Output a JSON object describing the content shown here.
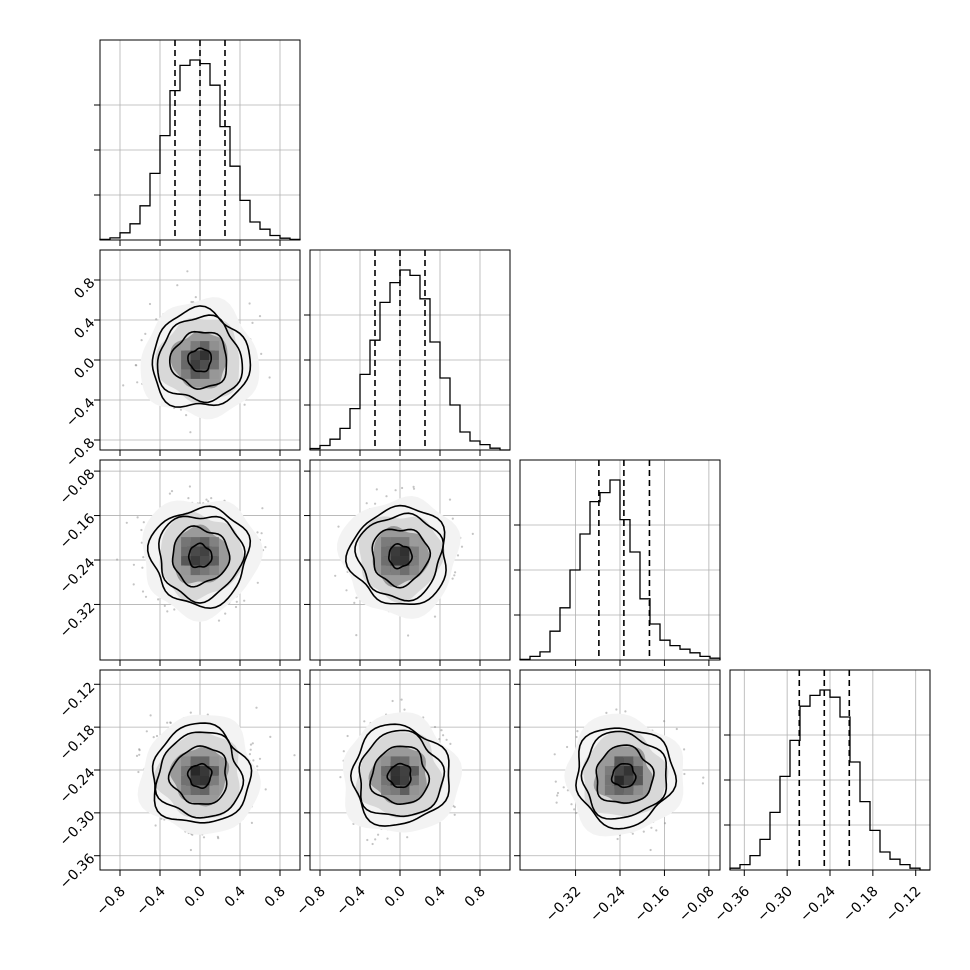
{
  "chart_data": {
    "type": "corner",
    "dimensions": 4,
    "grid": true,
    "params": [
      {
        "range": [
          -1.0,
          1.0
        ],
        "ticks": [
          -0.8,
          -0.4,
          0.0,
          0.4,
          0.8
        ],
        "tick_labels": [
          "−0.8",
          "−0.4",
          "0.0",
          "0.4",
          "0.8"
        ],
        "hist_bins": 20,
        "hist_heights": [
          0.003,
          0.012,
          0.04,
          0.09,
          0.19,
          0.37,
          0.58,
          0.83,
          0.97,
          1.0,
          0.98,
          0.86,
          0.63,
          0.41,
          0.22,
          0.1,
          0.06,
          0.025,
          0.01,
          0.003
        ],
        "quantiles": [
          -0.25,
          0.0,
          0.25
        ]
      },
      {
        "range": [
          -0.9,
          1.1
        ],
        "ticks": [
          -0.8,
          -0.4,
          0.0,
          0.4,
          0.8
        ],
        "tick_labels": [
          "−0.8",
          "−0.4",
          "0.0",
          "0.4",
          "0.8"
        ],
        "hist_bins": 20,
        "hist_heights": [
          0.008,
          0.025,
          0.06,
          0.12,
          0.23,
          0.42,
          0.61,
          0.82,
          0.93,
          1.0,
          0.97,
          0.84,
          0.6,
          0.4,
          0.25,
          0.1,
          0.05,
          0.03,
          0.01,
          0.0
        ],
        "quantiles": [
          -0.25,
          0.0,
          0.25
        ]
      },
      {
        "range": [
          -0.42,
          -0.06
        ],
        "ticks": [
          -0.32,
          -0.24,
          -0.16,
          -0.08
        ],
        "tick_labels": [
          "−0.32",
          "−0.24",
          "−0.16",
          "−0.08"
        ],
        "hist_bins": 20,
        "hist_heights": [
          0.003,
          0.02,
          0.045,
          0.16,
          0.29,
          0.5,
          0.7,
          0.88,
          0.93,
          1.0,
          0.78,
          0.6,
          0.34,
          0.2,
          0.11,
          0.08,
          0.06,
          0.04,
          0.02,
          0.01
        ],
        "quantiles": [
          -0.278,
          -0.233,
          -0.187
        ]
      },
      {
        "range": [
          -0.38,
          -0.1
        ],
        "ticks": [
          -0.36,
          -0.3,
          -0.24,
          -0.18,
          -0.12
        ],
        "tick_labels": [
          "−0.36",
          "−0.30",
          "−0.24",
          "−0.18",
          "−0.12"
        ],
        "hist_bins": 20,
        "hist_heights": [
          0.01,
          0.03,
          0.08,
          0.17,
          0.32,
          0.52,
          0.72,
          0.91,
          0.97,
          1.0,
          0.96,
          0.85,
          0.6,
          0.38,
          0.22,
          0.1,
          0.06,
          0.03,
          0.01,
          0.0
        ],
        "quantiles": [
          -0.283,
          -0.248,
          -0.213
        ]
      }
    ],
    "means": [
      0.0,
      0.0,
      -0.233,
      -0.248
    ],
    "sigmas": [
      0.21,
      0.21,
      0.038,
      0.03
    ]
  },
  "colors": {
    "line": "#000000",
    "grid": "#b0b0b0",
    "scatter": "#8a8a8a"
  }
}
